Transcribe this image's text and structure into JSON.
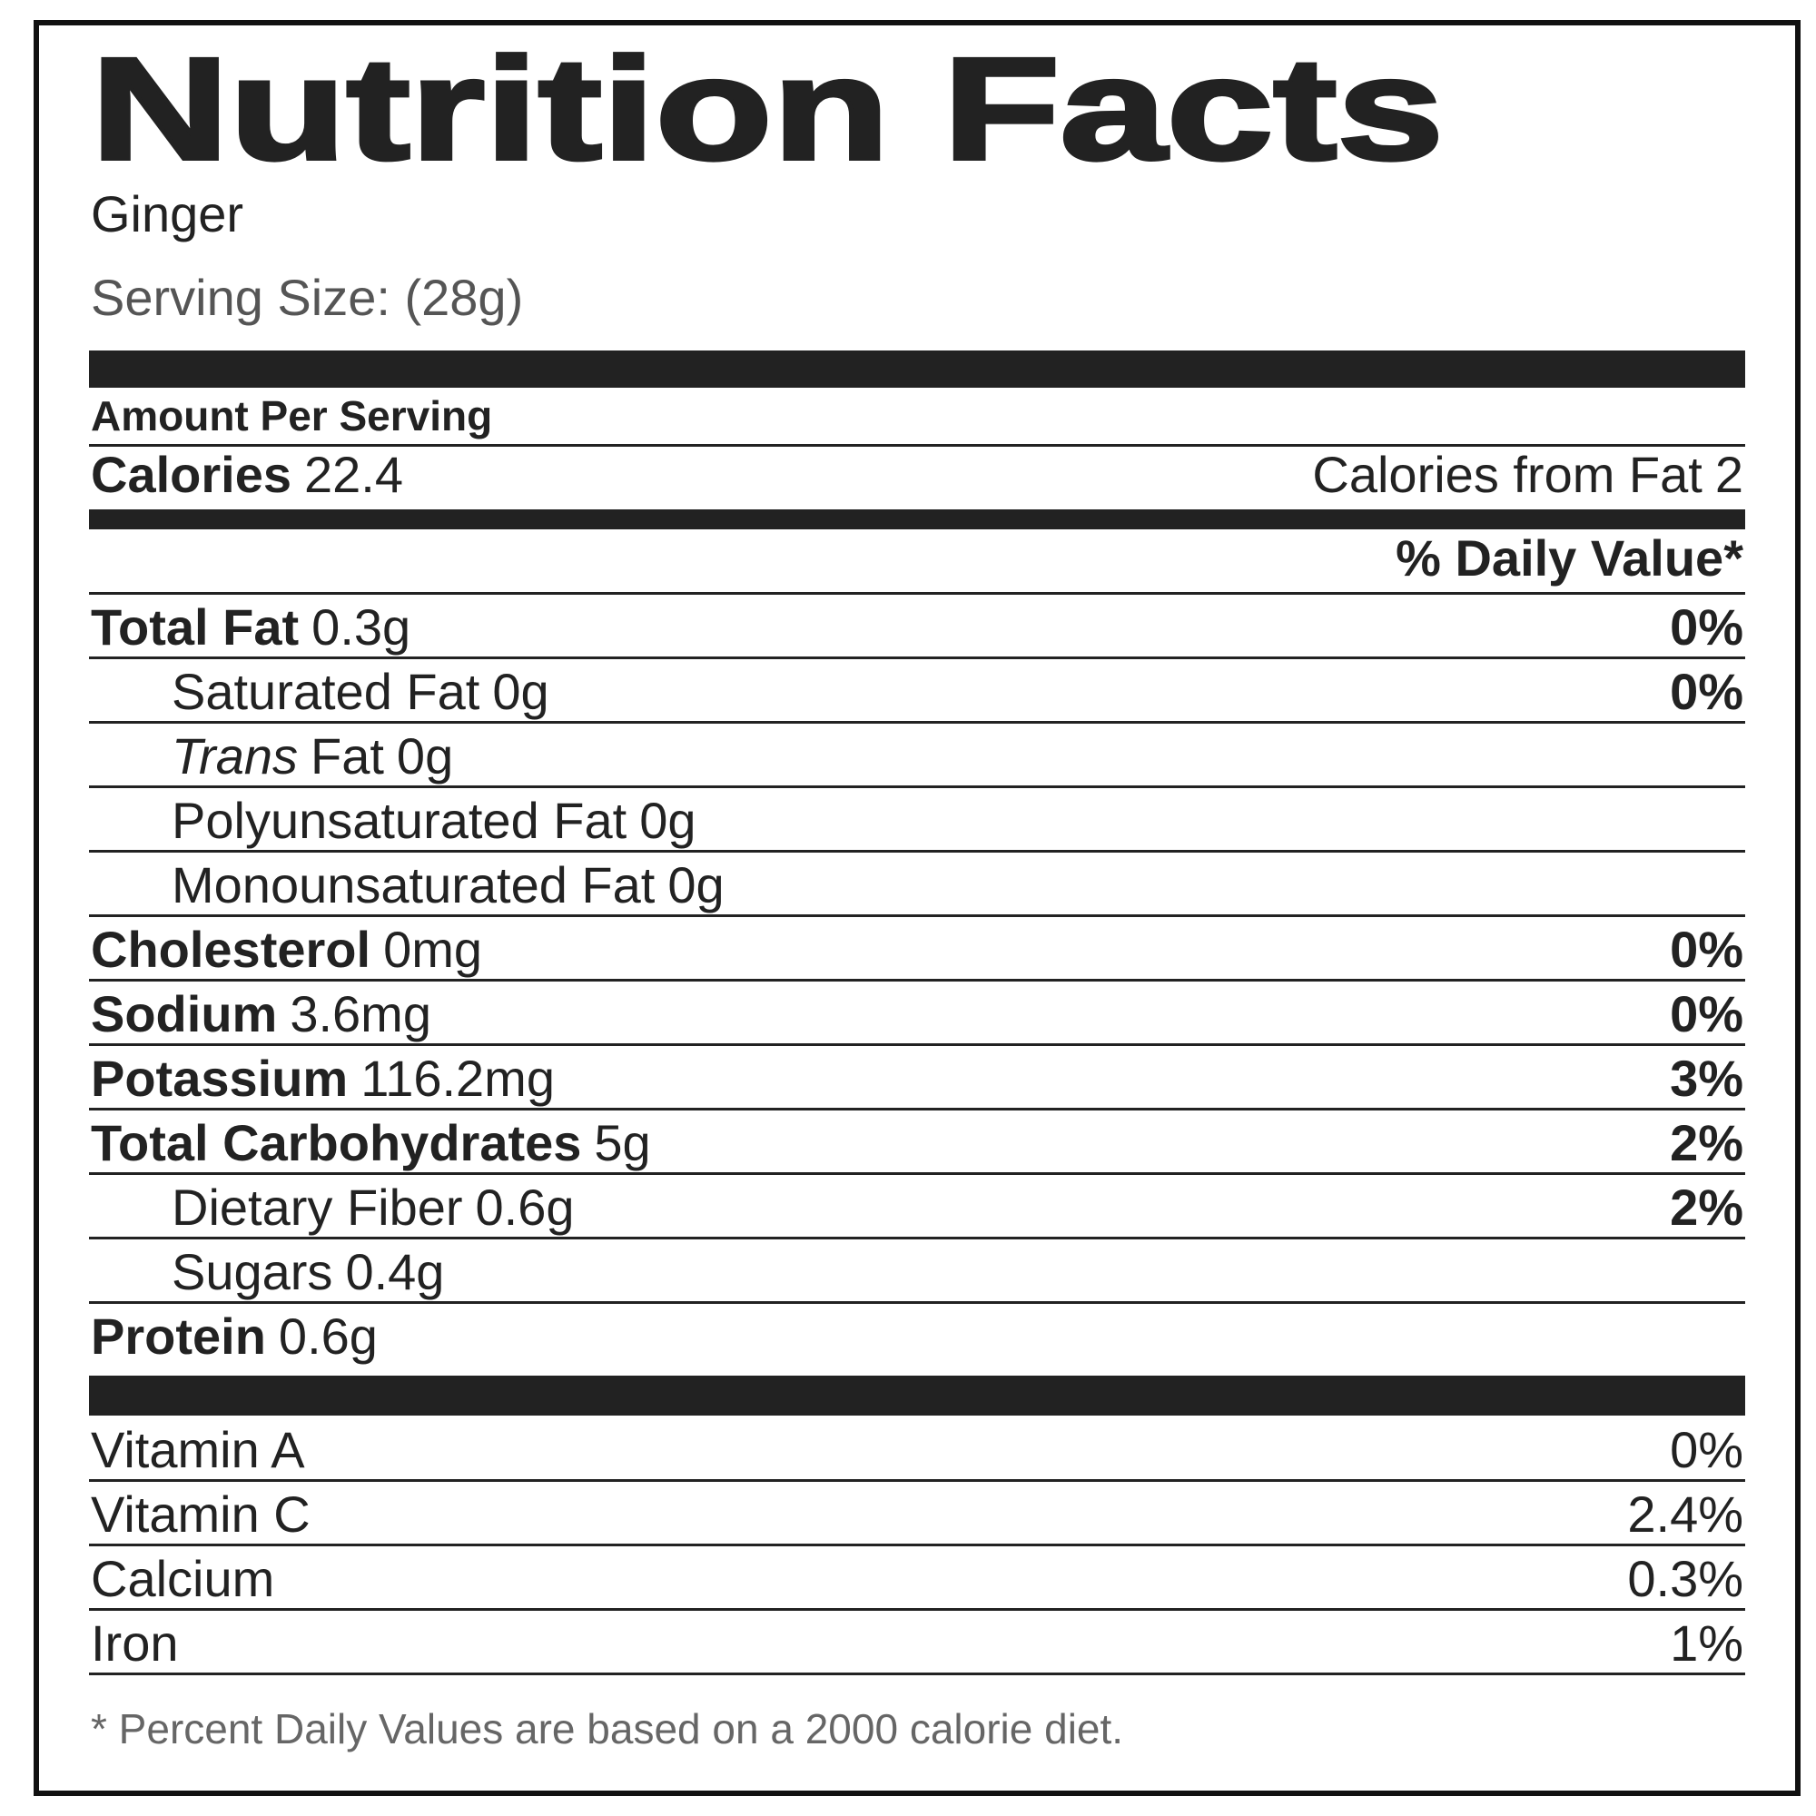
{
  "title": "Nutrition Facts",
  "food": "Ginger",
  "serving_size": "Serving Size: (28g)",
  "amount_per_serving": "Amount Per Serving",
  "calories": {
    "label": "Calories",
    "value": "22.4"
  },
  "calories_from_fat": {
    "label": "Calories from Fat",
    "value": "2"
  },
  "daily_value_header": "% Daily Value*",
  "nutrients": [
    {
      "name": "Total Fat",
      "amount": "0.3g",
      "dv": "0%",
      "bold": true,
      "indent": false
    },
    {
      "name": "Saturated Fat",
      "amount": "0g",
      "dv": "0%",
      "bold": false,
      "indent": true
    },
    {
      "name_italic": "Trans",
      "name": "Fat",
      "amount": "0g",
      "bold": false,
      "indent": true
    },
    {
      "name": "Polyunsaturated Fat",
      "amount": "0g",
      "bold": false,
      "indent": true
    },
    {
      "name": "Monounsaturated Fat",
      "amount": "0g",
      "bold": false,
      "indent": true
    },
    {
      "name": "Cholesterol",
      "amount": "0mg",
      "dv": "0%",
      "bold": true,
      "indent": false
    },
    {
      "name": "Sodium",
      "amount": "3.6mg",
      "dv": "0%",
      "bold": true,
      "indent": false
    },
    {
      "name": "Potassium",
      "amount": "116.2mg",
      "dv": "3%",
      "bold": true,
      "indent": false
    },
    {
      "name": "Total Carbohydrates",
      "amount": "5g",
      "dv": "2%",
      "bold": true,
      "indent": false
    },
    {
      "name": "Dietary Fiber",
      "amount": "0.6g",
      "dv": "2%",
      "bold": false,
      "indent": true
    },
    {
      "name": "Sugars",
      "amount": "0.4g",
      "bold": false,
      "indent": true
    },
    {
      "name": "Protein",
      "amount": "0.6g",
      "bold": true,
      "indent": false
    }
  ],
  "vitamins": [
    {
      "name": "Vitamin A",
      "dv": "0%"
    },
    {
      "name": "Vitamin C",
      "dv": "2.4%"
    },
    {
      "name": "Calcium",
      "dv": "0.3%"
    },
    {
      "name": "Iron",
      "dv": "1%"
    }
  ],
  "footnote": "* Percent Daily Values are based on a 2000 calorie diet."
}
